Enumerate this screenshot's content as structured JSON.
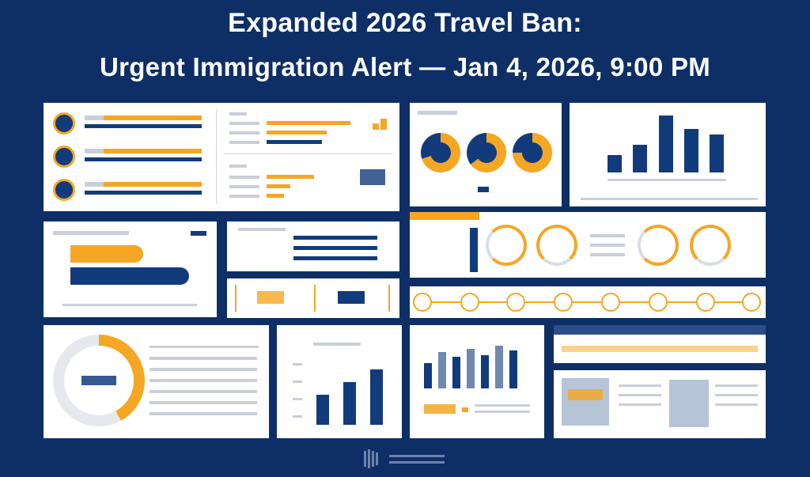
{
  "header": {
    "title_line1": "Expanded 2026 Travel Ban:",
    "title_line2": "Urgent Immigration Alert — Jan 4, 2026, 9:00 PM"
  },
  "colors": {
    "background": "#0e2f66",
    "navy": "#123b7c",
    "gold": "#f5a623",
    "panel": "#ffffff"
  }
}
